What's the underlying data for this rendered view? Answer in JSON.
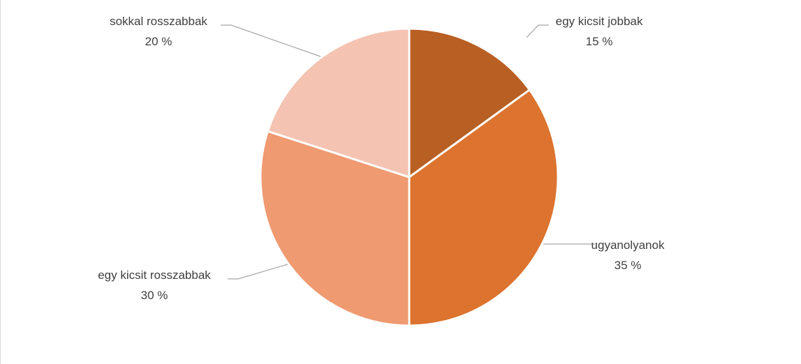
{
  "chart_data": {
    "type": "pie",
    "title": "",
    "slices": [
      {
        "label": "egy kicsit jobbak",
        "value": 15,
        "value_text": "15 %",
        "color": "#b85f23"
      },
      {
        "label": "ugyanolyanok",
        "value": 35,
        "value_text": "35 %",
        "color": "#dc732e"
      },
      {
        "label": "egy kicsit rosszabbak",
        "value": 30,
        "value_text": "30 %",
        "color": "#ef9a70"
      },
      {
        "label": "sokkal rosszabbak",
        "value": 20,
        "value_text": "20 %",
        "color": "#f4c3b2"
      }
    ],
    "start_angle": "12 o'clock",
    "direction": "clockwise",
    "legend": "none",
    "data_labels": "outside with leader lines"
  }
}
